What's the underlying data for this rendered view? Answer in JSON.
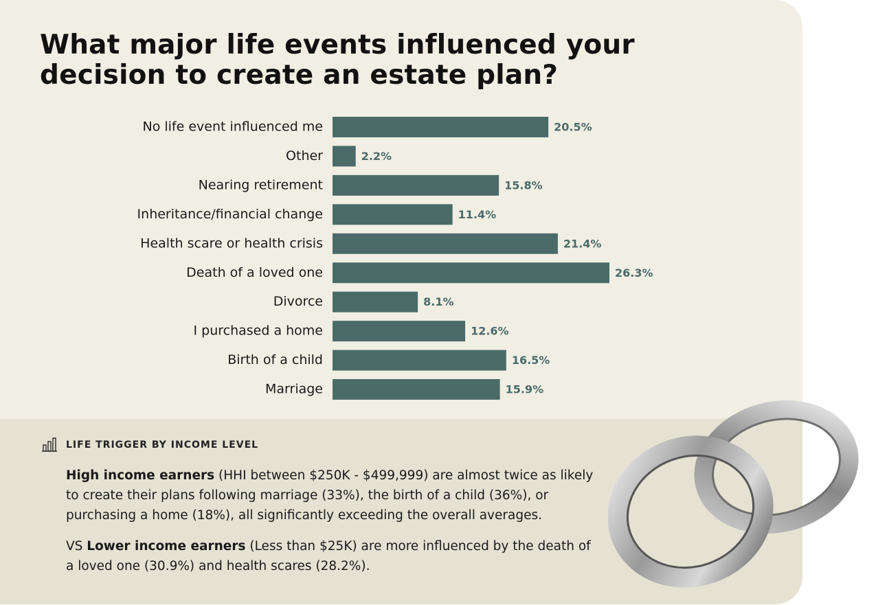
{
  "chart_data": {
    "type": "hbar",
    "title": "What major life events influenced your decision to create an estate plan?",
    "categories": [
      "No life event influenced me",
      "Other",
      "Nearing retirement",
      "Inheritance/financial change",
      "Health scare or health crisis",
      "Death of a loved one",
      "Divorce",
      "I purchased a home",
      "Birth of a child",
      "Marriage"
    ],
    "values": [
      20.5,
      2.2,
      15.8,
      11.4,
      21.4,
      26.3,
      8.1,
      12.6,
      16.5,
      15.9
    ],
    "value_labels": [
      "20.5%",
      "2.2%",
      "15.8%",
      "11.4%",
      "21.4%",
      "26.3%",
      "8.1%",
      "12.6%",
      "16.5%",
      "15.9%"
    ],
    "color": "#4b6b69"
  },
  "insight": {
    "heading": "LIFE TRIGGER BY INCOME LEVEL",
    "paragraphs": [
      {
        "lead": "High income earners",
        "text": "(HHI between $250K - $499,999) are almost twice as likely to create their plans following marriage (33%), the birth of a child (36%), or purchasing a home (18%), all significantly exceeding the overall averages."
      },
      {
        "prefix": "VS",
        "lead": "Lower income earners",
        "text": "(Less than $25K) are more influenced by the death of a loved one (30.9%) and health scares (28.2%)."
      }
    ]
  }
}
